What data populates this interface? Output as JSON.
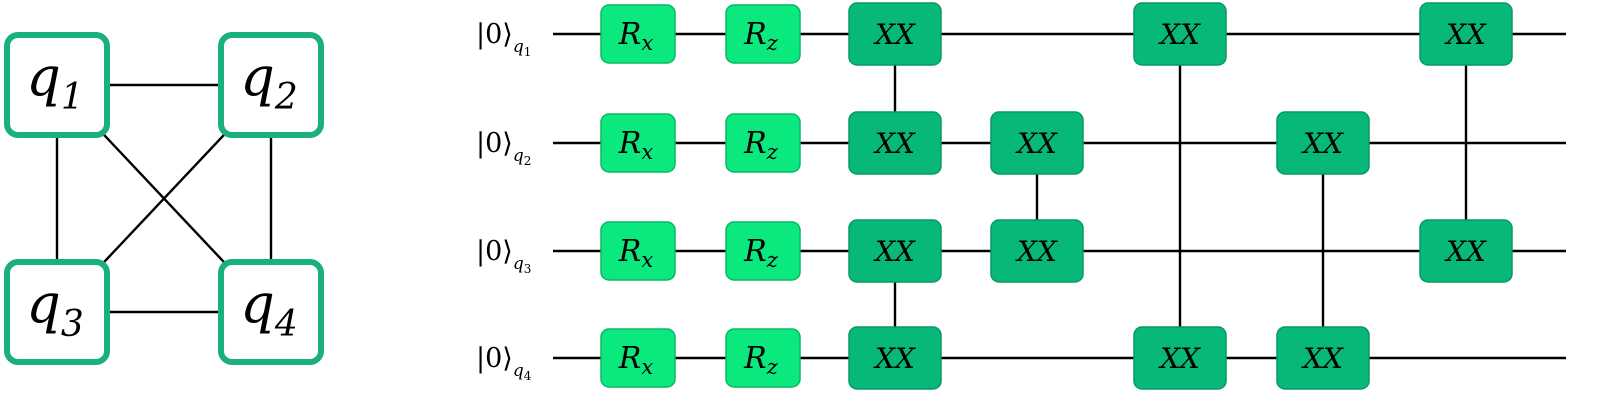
{
  "colors": {
    "node_border": "#19b07c",
    "rotation_gate_fill": "#0ae87e",
    "rotation_gate_border": "#08b864",
    "xx_gate_fill": "#08b878",
    "xx_gate_border": "#079a64",
    "line": "#000000"
  },
  "graph": {
    "nodes": [
      {
        "id": "q1",
        "symbol": "q",
        "sub": "1"
      },
      {
        "id": "q2",
        "symbol": "q",
        "sub": "2"
      },
      {
        "id": "q3",
        "symbol": "q",
        "sub": "3"
      },
      {
        "id": "q4",
        "symbol": "q",
        "sub": "4"
      }
    ],
    "edges": [
      [
        "q1",
        "q2"
      ],
      [
        "q1",
        "q3"
      ],
      [
        "q1",
        "q4"
      ],
      [
        "q2",
        "q3"
      ],
      [
        "q2",
        "q4"
      ],
      [
        "q3",
        "q4"
      ]
    ]
  },
  "circuit": {
    "qubits": [
      {
        "ket": "|0⟩",
        "sub": "q",
        "sub_index": "1"
      },
      {
        "ket": "|0⟩",
        "sub": "q",
        "sub_index": "2"
      },
      {
        "ket": "|0⟩",
        "sub": "q",
        "sub_index": "3"
      },
      {
        "ket": "|0⟩",
        "sub": "q",
        "sub_index": "4"
      }
    ],
    "rotation_gates": [
      {
        "symbol": "R",
        "sub": "x",
        "qubit": 0,
        "column": 0
      },
      {
        "symbol": "R",
        "sub": "z",
        "qubit": 0,
        "column": 1
      },
      {
        "symbol": "R",
        "sub": "x",
        "qubit": 1,
        "column": 0
      },
      {
        "symbol": "R",
        "sub": "z",
        "qubit": 1,
        "column": 1
      },
      {
        "symbol": "R",
        "sub": "x",
        "qubit": 2,
        "column": 0
      },
      {
        "symbol": "R",
        "sub": "z",
        "qubit": 2,
        "column": 1
      },
      {
        "symbol": "R",
        "sub": "x",
        "qubit": 3,
        "column": 0
      },
      {
        "symbol": "R",
        "sub": "z",
        "qubit": 3,
        "column": 1
      }
    ],
    "xx_label": "XX",
    "xx_gates": [
      {
        "column": 2,
        "qubits": [
          0,
          1
        ]
      },
      {
        "column": 2,
        "qubits": [
          2,
          3
        ]
      },
      {
        "column": 3,
        "qubits": [
          1,
          2
        ]
      },
      {
        "column": 4,
        "qubits": [
          0,
          3
        ]
      },
      {
        "column": 5,
        "qubits": [
          1,
          3
        ]
      },
      {
        "column": 6,
        "qubits": [
          0,
          2
        ]
      }
    ]
  }
}
